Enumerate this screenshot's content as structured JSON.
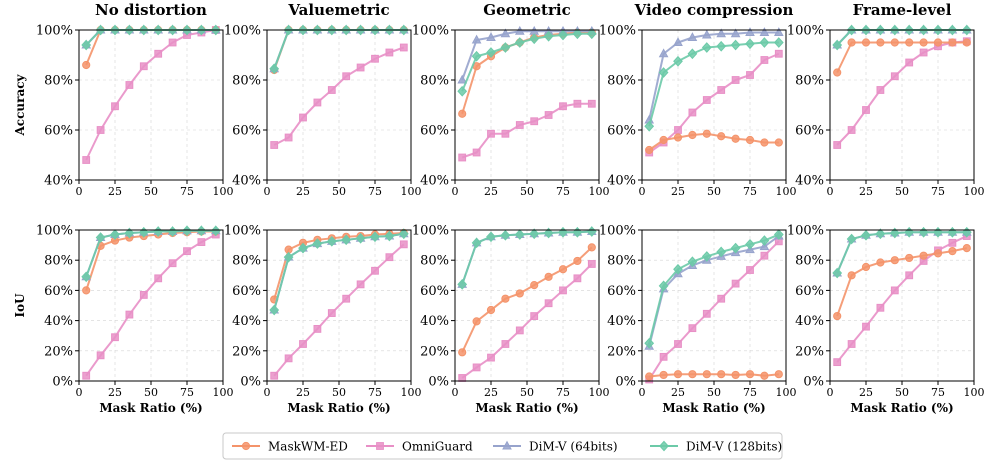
{
  "chart_data": {
    "type": "line",
    "x": [
      5,
      15,
      25,
      35,
      45,
      55,
      65,
      75,
      85,
      95
    ],
    "xlabel": "Mask Ratio (%)",
    "xlim": [
      0,
      100
    ],
    "xticks": [
      "0",
      "25",
      "50",
      "75",
      "100"
    ],
    "colors": {
      "MaskWM-ED": "#f4936a",
      "OmniGuard": "#e88fc6",
      "DiM-V (64bits)": "#97a3cc",
      "DiM-V (128bits)": "#6ccaa8"
    },
    "series_names": [
      "MaskWM-ED",
      "OmniGuard",
      "DiM-V (64bits)",
      "DiM-V (128bits)"
    ],
    "legend_position": "bottom-center",
    "columns": [
      "No distortion",
      "Valuemetric",
      "Geometric",
      "Video compression",
      "Frame-level"
    ],
    "rows": [
      {
        "label": "Accuracy",
        "ylim": [
          40,
          100
        ],
        "yticks": [
          "40%",
          "60%",
          "80%",
          "100%"
        ],
        "panels": [
          {
            "title": "No distortion",
            "series": [
              {
                "name": "MaskWM-ED",
                "values": [
                  86,
                  100,
                  100,
                  100,
                  100,
                  100,
                  100,
                  100,
                  100,
                  100
                ]
              },
              {
                "name": "OmniGuard",
                "values": [
                  48,
                  60,
                  69.5,
                  78,
                  85.5,
                  90.5,
                  95,
                  98,
                  99,
                  100
                ]
              },
              {
                "name": "DiM-V (64bits)",
                "values": [
                  94,
                  100,
                  100,
                  100,
                  100,
                  100,
                  100,
                  100,
                  100,
                  100
                ]
              },
              {
                "name": "DiM-V (128bits)",
                "values": [
                  94,
                  100,
                  100,
                  100,
                  100,
                  100,
                  100,
                  100,
                  100,
                  100
                ]
              }
            ]
          },
          {
            "title": "Valuemetric",
            "series": [
              {
                "name": "MaskWM-ED",
                "values": [
                  84,
                  100,
                  100,
                  100,
                  100,
                  100,
                  100,
                  100,
                  100,
                  100
                ]
              },
              {
                "name": "OmniGuard",
                "values": [
                  54,
                  57,
                  65,
                  71,
                  76,
                  81.5,
                  85,
                  88.5,
                  91,
                  93
                ]
              },
              {
                "name": "DiM-V (64bits)",
                "values": [
                  84.5,
                  100,
                  100,
                  100,
                  100,
                  100,
                  100,
                  100,
                  100,
                  100
                ]
              },
              {
                "name": "DiM-V (128bits)",
                "values": [
                  84.5,
                  100,
                  100,
                  100,
                  100,
                  100,
                  100,
                  100,
                  100,
                  100
                ]
              }
            ]
          },
          {
            "title": "Geometric",
            "series": [
              {
                "name": "MaskWM-ED",
                "values": [
                  66.5,
                  85.5,
                  89.5,
                  93,
                  95,
                  97,
                  98,
                  98.5,
                  99,
                  99
                ]
              },
              {
                "name": "OmniGuard",
                "values": [
                  49,
                  51,
                  58.5,
                  58.5,
                  62,
                  63.5,
                  66,
                  69.5,
                  70.5,
                  70.5
                ]
              },
              {
                "name": "DiM-V (64bits)",
                "values": [
                  80,
                  96,
                  97,
                  98.5,
                  99.5,
                  99.5,
                  99.5,
                  99.5,
                  99.5,
                  99.5
                ]
              },
              {
                "name": "DiM-V (128bits)",
                "values": [
                  75.5,
                  89.5,
                  91,
                  93,
                  95,
                  96.5,
                  97.5,
                  98,
                  98.5,
                  98.5
                ]
              }
            ]
          },
          {
            "title": "Video compression",
            "series": [
              {
                "name": "MaskWM-ED",
                "values": [
                  52,
                  56,
                  57,
                  58,
                  58.5,
                  57.5,
                  56.5,
                  56,
                  55,
                  55
                ]
              },
              {
                "name": "OmniGuard",
                "values": [
                  51,
                  55,
                  60,
                  67,
                  72,
                  76,
                  80,
                  82,
                  88,
                  90.5
                ]
              },
              {
                "name": "DiM-V (64bits)",
                "values": [
                  64,
                  90.5,
                  95,
                  97,
                  98,
                  98.5,
                  98.5,
                  99,
                  99,
                  99
                ]
              },
              {
                "name": "DiM-V (128bits)",
                "values": [
                  61.5,
                  83,
                  87.5,
                  90.5,
                  93,
                  93.5,
                  94,
                  94.5,
                  95,
                  95
                ]
              }
            ]
          },
          {
            "title": "Frame-level",
            "series": [
              {
                "name": "MaskWM-ED",
                "values": [
                  83,
                  95,
                  95,
                  95,
                  95,
                  95,
                  95,
                  95,
                  95,
                  95
                ]
              },
              {
                "name": "OmniGuard",
                "values": [
                  54,
                  60,
                  68,
                  76,
                  81.5,
                  87,
                  91,
                  93.5,
                  95,
                  95.5
                ]
              },
              {
                "name": "DiM-V (64bits)",
                "values": [
                  94,
                  100,
                  100,
                  100,
                  100,
                  100,
                  100,
                  100,
                  100,
                  100
                ]
              },
              {
                "name": "DiM-V (128bits)",
                "values": [
                  94,
                  100,
                  100,
                  100,
                  100,
                  100,
                  100,
                  100,
                  100,
                  100
                ]
              }
            ]
          }
        ]
      },
      {
        "label": "IoU",
        "ylim": [
          0,
          100
        ],
        "yticks": [
          "0%",
          "20%",
          "40%",
          "60%",
          "80%",
          "100%"
        ],
        "panels": [
          {
            "title": "No distortion",
            "series": [
              {
                "name": "MaskWM-ED",
                "values": [
                  60,
                  89.5,
                  93,
                  95,
                  96,
                  97,
                  98,
                  98.5,
                  99,
                  99
                ]
              },
              {
                "name": "OmniGuard",
                "values": [
                  3.5,
                  17,
                  29,
                  44,
                  57,
                  68,
                  78,
                  86,
                  92,
                  97
                ]
              },
              {
                "name": "DiM-V (64bits)",
                "values": [
                  69,
                  95,
                  97,
                  98,
                  98.5,
                  99,
                  99,
                  99.5,
                  99.5,
                  99.5
                ]
              },
              {
                "name": "DiM-V (128bits)",
                "values": [
                  69,
                  95,
                  97,
                  98,
                  98.5,
                  99,
                  99,
                  99.5,
                  99.5,
                  99.5
                ]
              }
            ]
          },
          {
            "title": "Valuemetric",
            "series": [
              {
                "name": "MaskWM-ED",
                "values": [
                  54,
                  87,
                  91.5,
                  93.5,
                  94.5,
                  95.5,
                  96,
                  97,
                  97.5,
                  98
                ]
              },
              {
                "name": "OmniGuard",
                "values": [
                  3.5,
                  15,
                  24.5,
                  34.5,
                  45,
                  54.5,
                  64,
                  73,
                  82,
                  90.5
                ]
              },
              {
                "name": "DiM-V (64bits)",
                "values": [
                  47,
                  82,
                  88,
                  91,
                  92.5,
                  93.5,
                  94.5,
                  95.5,
                  96,
                  97.5
                ]
              },
              {
                "name": "DiM-V (128bits)",
                "values": [
                  47,
                  82,
                  88,
                  91,
                  92.5,
                  93.5,
                  94.5,
                  95.5,
                  96,
                  97.5
                ]
              }
            ]
          },
          {
            "title": "Geometric",
            "series": [
              {
                "name": "MaskWM-ED",
                "values": [
                  19,
                  39.5,
                  47,
                  54.5,
                  58,
                  63.5,
                  69,
                  74,
                  79.5,
                  88.5
                ]
              },
              {
                "name": "OmniGuard",
                "values": [
                  2,
                  9,
                  15.5,
                  24.5,
                  33.5,
                  43,
                  51.5,
                  60,
                  68,
                  77.5
                ]
              },
              {
                "name": "DiM-V (64bits)",
                "values": [
                  64,
                  91.5,
                  95.5,
                  96.5,
                  97,
                  97.5,
                  98,
                  98.5,
                  98.5,
                  99
                ]
              },
              {
                "name": "DiM-V (128bits)",
                "values": [
                  64,
                  91.5,
                  95.5,
                  96.5,
                  97,
                  97.5,
                  98,
                  98.5,
                  98.5,
                  99
                ]
              }
            ]
          },
          {
            "title": "Video compression",
            "series": [
              {
                "name": "MaskWM-ED",
                "values": [
                  3,
                  4,
                  4.5,
                  4.5,
                  4.5,
                  4.5,
                  4,
                  4.5,
                  3.5,
                  4.5
                ]
              },
              {
                "name": "OmniGuard",
                "values": [
                  1,
                  16,
                  24.5,
                  35,
                  44.5,
                  54.5,
                  64.5,
                  73.5,
                  83,
                  92.5
                ]
              },
              {
                "name": "DiM-V (64bits)",
                "values": [
                  23,
                  61,
                  71,
                  76.5,
                  80,
                  82.5,
                  85,
                  87,
                  89,
                  96
                ]
              },
              {
                "name": "DiM-V (128bits)",
                "values": [
                  25,
                  63,
                  74,
                  79,
                  82.5,
                  85.5,
                  88,
                  90.5,
                  93,
                  97
                ]
              }
            ]
          },
          {
            "title": "Frame-level",
            "series": [
              {
                "name": "MaskWM-ED",
                "values": [
                  43,
                  70,
                  75.5,
                  78.5,
                  80,
                  81.5,
                  83,
                  84.5,
                  86,
                  88
                ]
              },
              {
                "name": "OmniGuard",
                "values": [
                  12.5,
                  24.5,
                  36,
                  48.5,
                  60,
                  70,
                  79.5,
                  86.5,
                  91.5,
                  96
                ]
              },
              {
                "name": "DiM-V (64bits)",
                "values": [
                  71.5,
                  94,
                  96.5,
                  97.5,
                  98,
                  98.5,
                  98.5,
                  98.5,
                  98.5,
                  98.5
                ]
              },
              {
                "name": "DiM-V (128bits)",
                "values": [
                  71.5,
                  94,
                  96.5,
                  97.5,
                  98,
                  98.5,
                  98.5,
                  98.5,
                  98.5,
                  98.5
                ]
              }
            ]
          }
        ]
      }
    ]
  }
}
